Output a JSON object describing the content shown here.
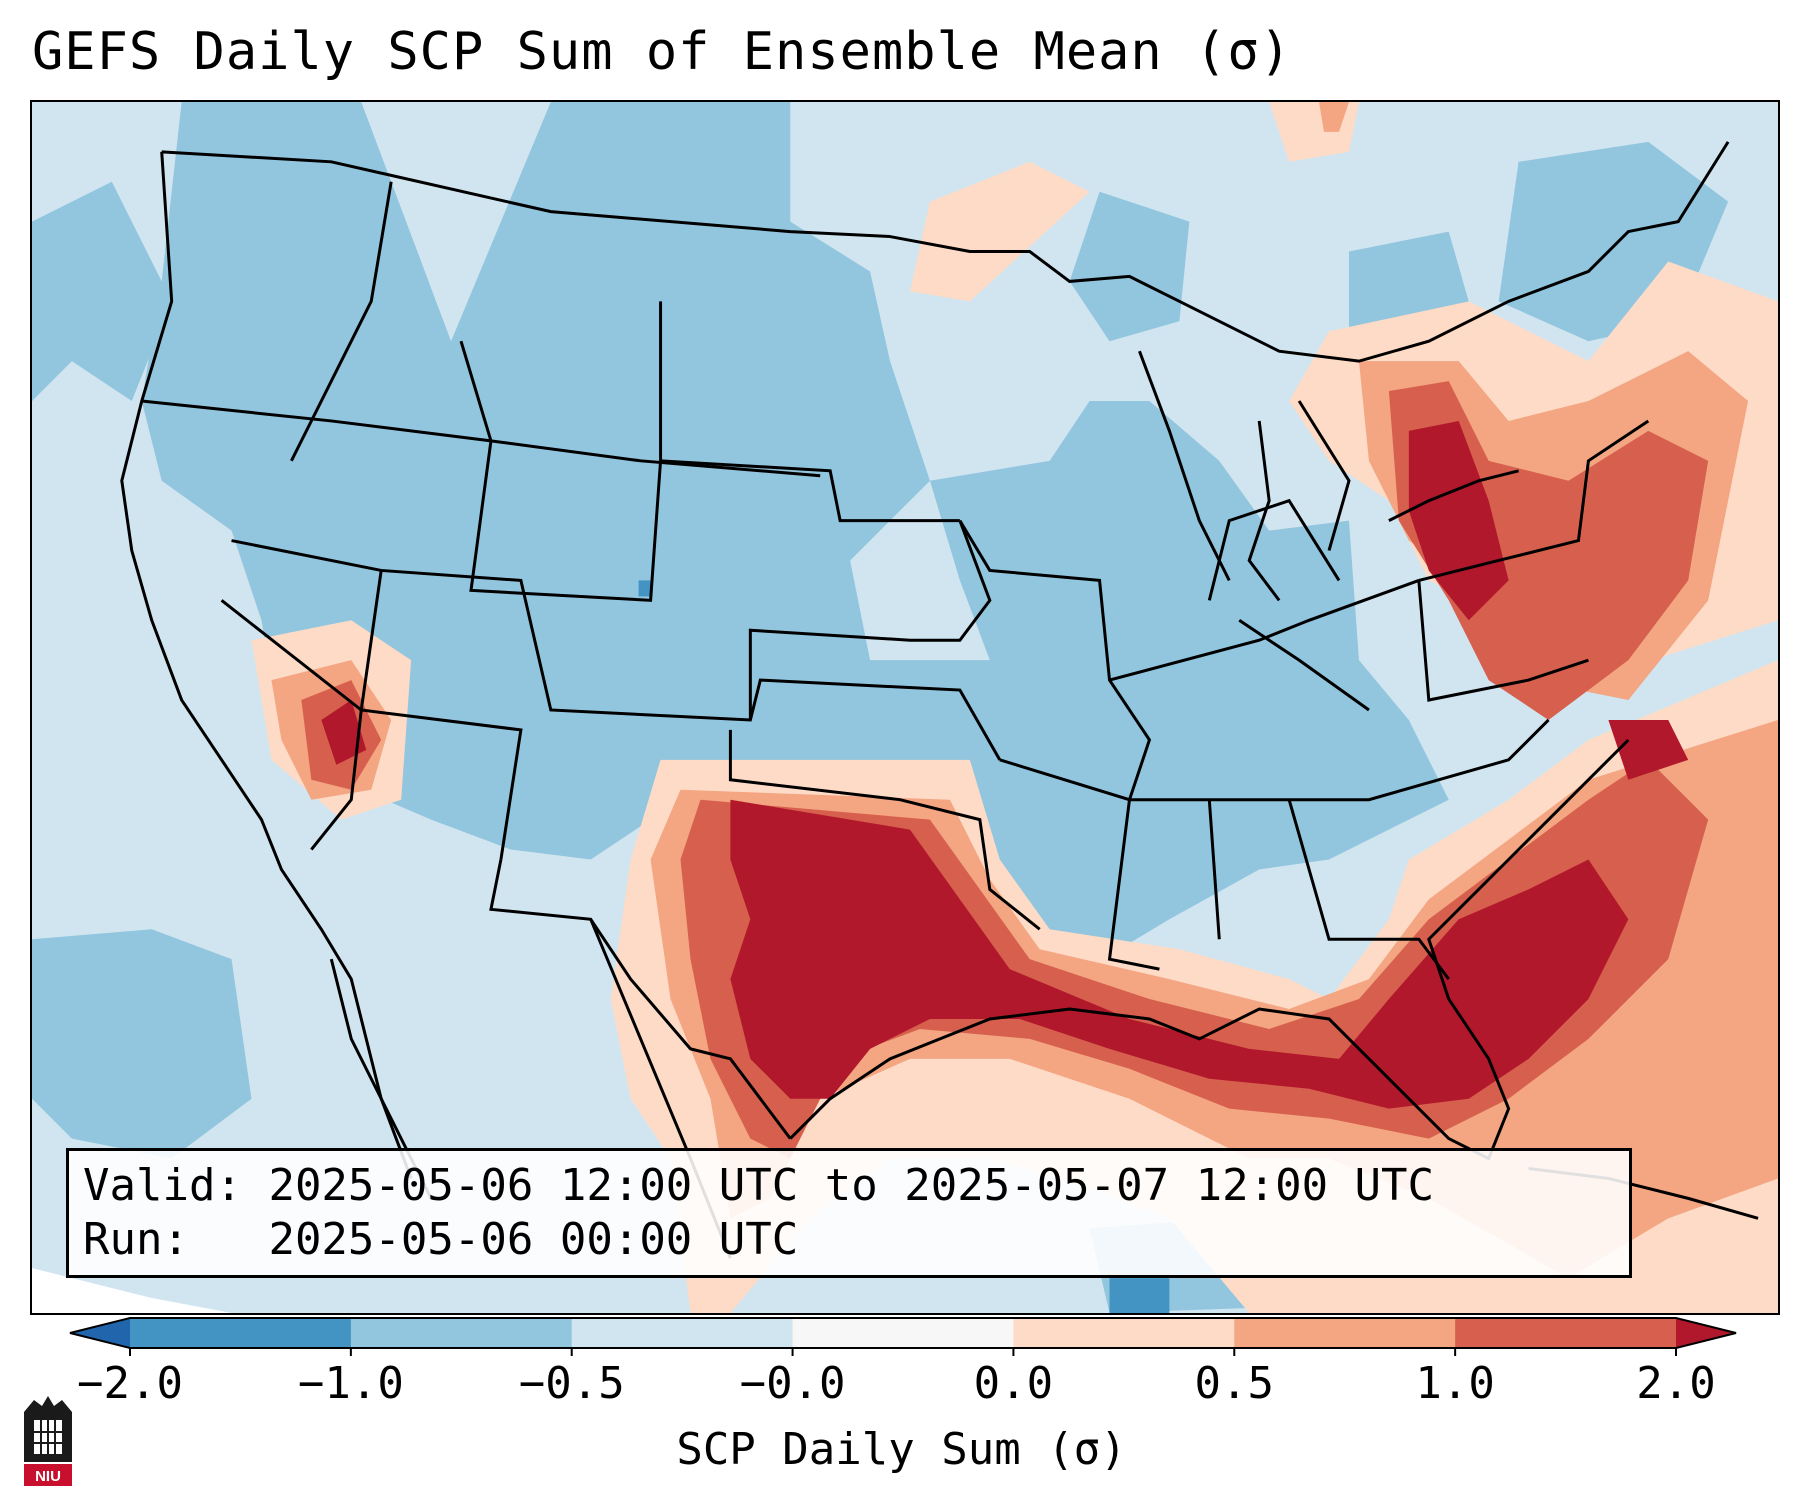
{
  "title": "GEFS Daily SCP Sum of Ensemble Mean (σ)",
  "info": {
    "valid_label": "Valid:",
    "valid_value": "2025-05-06 12:00 UTC to 2025-05-07 12:00 UTC",
    "run_label": "Run:",
    "run_value": "2025-05-06 00:00 UTC"
  },
  "colorbar": {
    "label": "SCP Daily Sum (σ)",
    "ticks": [
      "−2.0",
      "−1.0",
      "−0.5",
      "−0.0",
      "0.0",
      "0.5",
      "1.0",
      "2.0"
    ],
    "bins": [
      {
        "range": "< −2.0",
        "color": "#2166ac"
      },
      {
        "range": "−2.0 to −1.0",
        "color": "#4393c3"
      },
      {
        "range": "−1.0 to −0.5",
        "color": "#92c5de"
      },
      {
        "range": "−0.5 to −0.0",
        "color": "#d1e5f0"
      },
      {
        "range": "−0.0 to 0.0",
        "color": "#f7f7f7"
      },
      {
        "range": "0.0 to 0.5",
        "color": "#fddbc7"
      },
      {
        "range": "0.5 to 1.0",
        "color": "#f4a582"
      },
      {
        "range": "1.0 to 2.0",
        "color": "#d6604d"
      },
      {
        "range": "> 2.0",
        "color": "#b2182b"
      }
    ]
  },
  "logo": {
    "text": "NIU"
  }
}
